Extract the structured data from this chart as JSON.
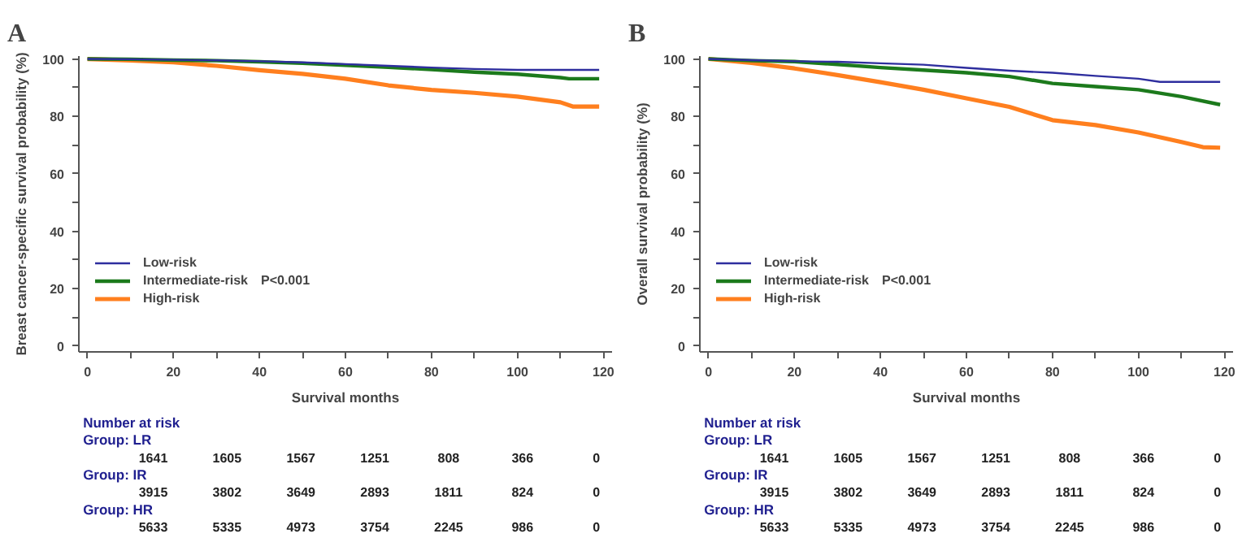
{
  "chart_data": [
    {
      "type": "step",
      "title": "A",
      "xlabel": "Survival months",
      "ylabel": "Breast cancer-specific survival probability (%)",
      "xlim": [
        -2,
        122
      ],
      "ylim": [
        -2,
        101
      ],
      "xticks": [
        0,
        {
          "value": 10,
          "label": null
        },
        20,
        {
          "value": 30,
          "label": null
        },
        40,
        {
          "value": 50,
          "label": null
        },
        60,
        {
          "value": 70,
          "label": null
        },
        80,
        {
          "value": 90,
          "label": null
        },
        100,
        {
          "value": 110,
          "label": null
        },
        120
      ],
      "yticks": [
        0,
        {
          "value": 10,
          "label": null
        },
        20,
        {
          "value": 30,
          "label": null
        },
        40,
        {
          "value": 50,
          "label": null
        },
        60,
        {
          "value": 70,
          "label": null
        },
        80,
        {
          "value": 90,
          "label": null
        },
        100
      ],
      "legend": "bottom left",
      "grid": false,
      "series": [
        {
          "name": "Low-risk",
          "color": "#2e2e9e",
          "x": [
            0,
            10,
            20,
            30,
            40,
            50,
            60,
            70,
            80,
            90,
            100,
            110,
            119
          ],
          "values": [
            100,
            99.9,
            99.7,
            99.5,
            99.2,
            98.8,
            98.2,
            97.6,
            97.0,
            96.5,
            96.2,
            96.2,
            96.2
          ]
        },
        {
          "name": "Intermediate-risk",
          "color": "#1c7a1c",
          "x": [
            0,
            10,
            20,
            30,
            40,
            50,
            60,
            70,
            80,
            90,
            100,
            110,
            112,
            119
          ],
          "values": [
            100,
            99.9,
            99.6,
            99.4,
            99.0,
            98.5,
            97.8,
            97.1,
            96.3,
            95.4,
            94.7,
            93.5,
            93.1,
            93.1
          ]
        },
        {
          "name": "High-risk",
          "color": "#ff7f1e",
          "x": [
            0,
            10,
            20,
            30,
            40,
            50,
            60,
            70,
            80,
            90,
            100,
            110,
            113,
            119
          ],
          "values": [
            100,
            99.5,
            98.8,
            97.6,
            96.1,
            94.8,
            93.1,
            90.8,
            89.2,
            88.2,
            86.9,
            84.9,
            83.4,
            83.4
          ]
        }
      ],
      "annotations": [
        "P<0.001",
        "Number at risk",
        "Group: LR",
        "1641",
        "1605",
        "1567",
        "1251",
        "808",
        "366",
        "0",
        "Group: IR",
        "3915",
        "3802",
        "3649",
        "2893",
        "1811",
        "824",
        "0",
        "Group: HR",
        "5633",
        "5335",
        "4973",
        "3754",
        "2245",
        "986",
        "0"
      ]
    },
    {
      "type": "step",
      "title": "B",
      "xlabel": "Survival months",
      "ylabel": "Overall survival probability (%)",
      "xlim": [
        -2,
        122
      ],
      "ylim": [
        -2,
        101
      ],
      "xticks": [
        0,
        {
          "value": 10,
          "label": null
        },
        20,
        {
          "value": 30,
          "label": null
        },
        40,
        {
          "value": 50,
          "label": null
        },
        60,
        {
          "value": 70,
          "label": null
        },
        80,
        {
          "value": 90,
          "label": null
        },
        100,
        {
          "value": 110,
          "label": null
        },
        120
      ],
      "yticks": [
        0,
        {
          "value": 10,
          "label": null
        },
        20,
        {
          "value": 30,
          "label": null
        },
        40,
        {
          "value": 50,
          "label": null
        },
        60,
        {
          "value": 70,
          "label": null
        },
        80,
        {
          "value": 90,
          "label": null
        },
        100
      ],
      "legend": "bottom left",
      "grid": false,
      "series": [
        {
          "name": "Low-risk",
          "color": "#2e2e9e",
          "x": [
            0,
            10,
            20,
            30,
            40,
            50,
            60,
            70,
            80,
            90,
            100,
            105,
            119
          ],
          "values": [
            100,
            99.6,
            99.2,
            99.0,
            98.5,
            98.0,
            96.9,
            95.9,
            95.2,
            94.1,
            93.1,
            92.0,
            92.0
          ]
        },
        {
          "name": "Intermediate-risk",
          "color": "#1c7a1c",
          "x": [
            0,
            10,
            20,
            30,
            40,
            50,
            60,
            70,
            80,
            90,
            100,
            110,
            119
          ],
          "values": [
            100,
            99.4,
            99.1,
            98.1,
            97.0,
            96.1,
            95.2,
            93.9,
            91.5,
            90.4,
            89.3,
            86.9,
            84.1
          ]
        },
        {
          "name": "High-risk",
          "color": "#ff7f1e",
          "x": [
            0,
            10,
            20,
            30,
            40,
            50,
            60,
            70,
            80,
            90,
            100,
            110,
            115,
            119
          ],
          "values": [
            100,
            98.6,
            96.7,
            94.4,
            91.9,
            89.3,
            86.3,
            83.3,
            78.7,
            77.0,
            74.4,
            71.1,
            69.3,
            69.1
          ]
        }
      ],
      "annotations": [
        "P<0.001",
        "Number at risk",
        "Group: LR",
        "1641",
        "1605",
        "1567",
        "1251",
        "808",
        "366",
        "0",
        "Group: IR",
        "3915",
        "3802",
        "3649",
        "2893",
        "1811",
        "824",
        "0",
        "Group: HR",
        "5633",
        "5335",
        "4973",
        "3754",
        "2245",
        "986",
        "0"
      ]
    }
  ]
}
